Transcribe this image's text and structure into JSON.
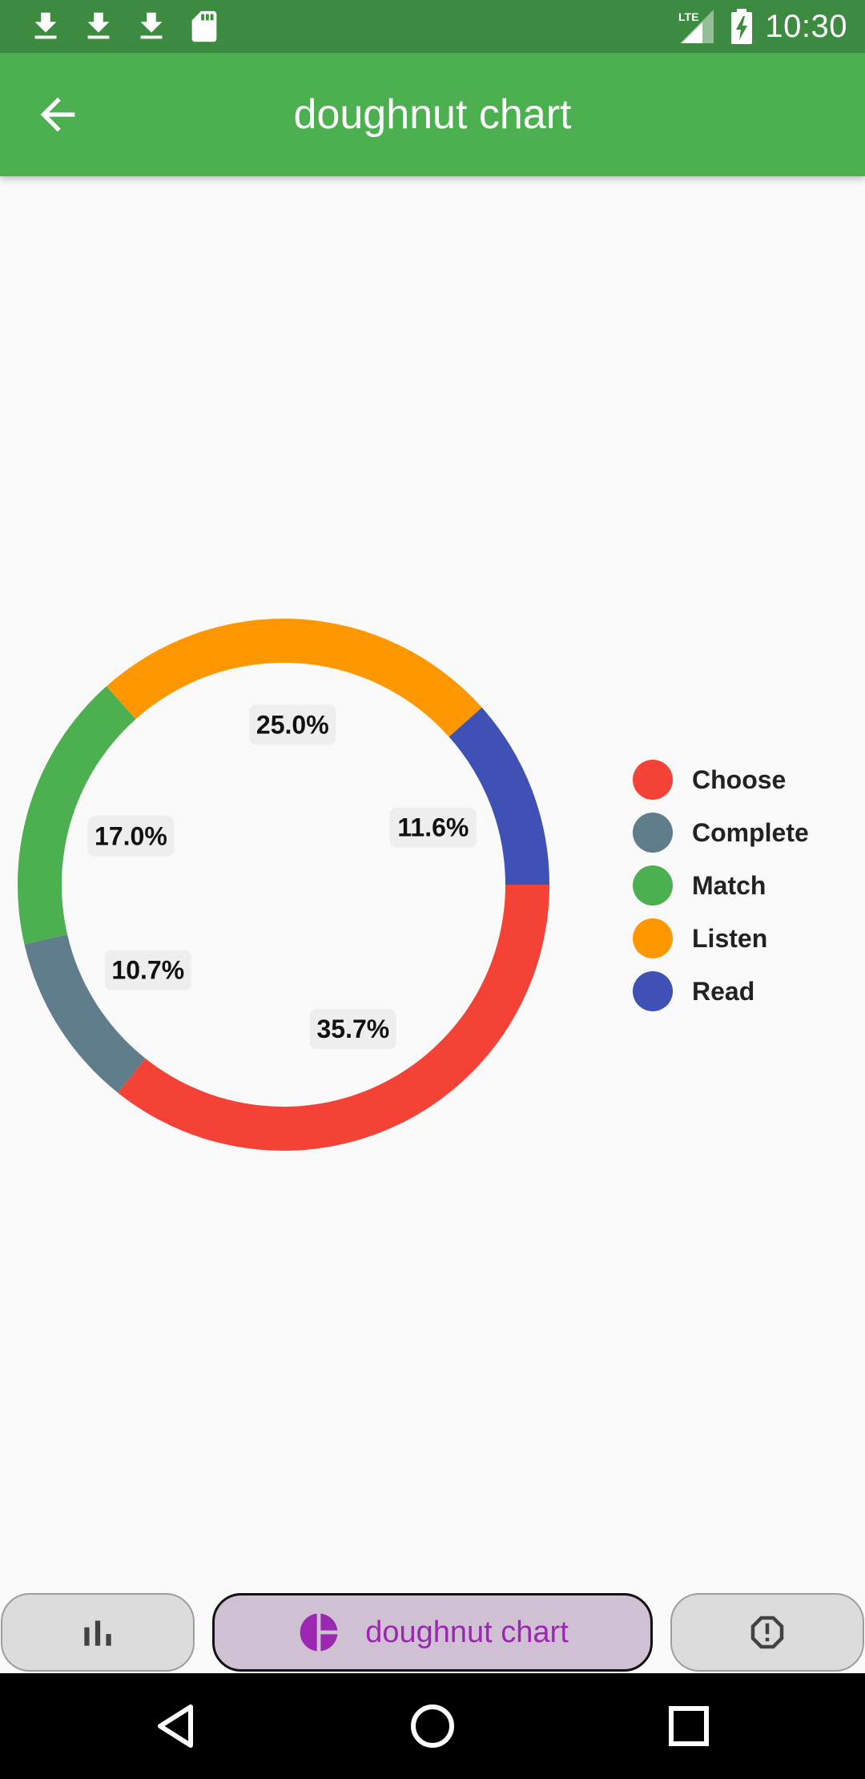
{
  "status_bar": {
    "time": "10:30",
    "network": "LTE",
    "left_icons": [
      "download-icon",
      "download-icon",
      "download-icon",
      "sd-card-icon"
    ],
    "right_icons": [
      "signal-icon",
      "battery-charging-icon"
    ]
  },
  "app_bar": {
    "title": "doughnut chart",
    "back_icon": "arrow-back-icon"
  },
  "chart_data": {
    "type": "pie",
    "variant": "doughnut",
    "categories": [
      "Choose",
      "Complete",
      "Match",
      "Listen",
      "Read"
    ],
    "values": [
      35.7,
      10.7,
      17.0,
      25.0,
      11.6
    ],
    "labels": [
      "35.7%",
      "10.7%",
      "17.0%",
      "25.0%",
      "11.6%"
    ],
    "colors": [
      "#f44336",
      "#607d8b",
      "#4caf50",
      "#ff9800",
      "#3f51b5"
    ],
    "start_angle_deg": 0,
    "direction": "clockwise",
    "legend_position": "right"
  },
  "legend": {
    "items": [
      {
        "label": "Choose",
        "color": "#f44336"
      },
      {
        "label": "Complete",
        "color": "#607d8b"
      },
      {
        "label": "Match",
        "color": "#4caf50"
      },
      {
        "label": "Listen",
        "color": "#ff9800"
      },
      {
        "label": "Read",
        "color": "#3f51b5"
      }
    ]
  },
  "bottom_tabs": {
    "left_icon": "bar-chart-icon",
    "center_label": "doughnut chart",
    "center_icon": "pie-chart-icon",
    "right_icon": "alert-octagon-icon",
    "accent_color": "#9c27b0"
  },
  "nav_bar": {
    "icons": [
      "back-triangle-icon",
      "home-circle-icon",
      "recents-square-icon"
    ]
  }
}
